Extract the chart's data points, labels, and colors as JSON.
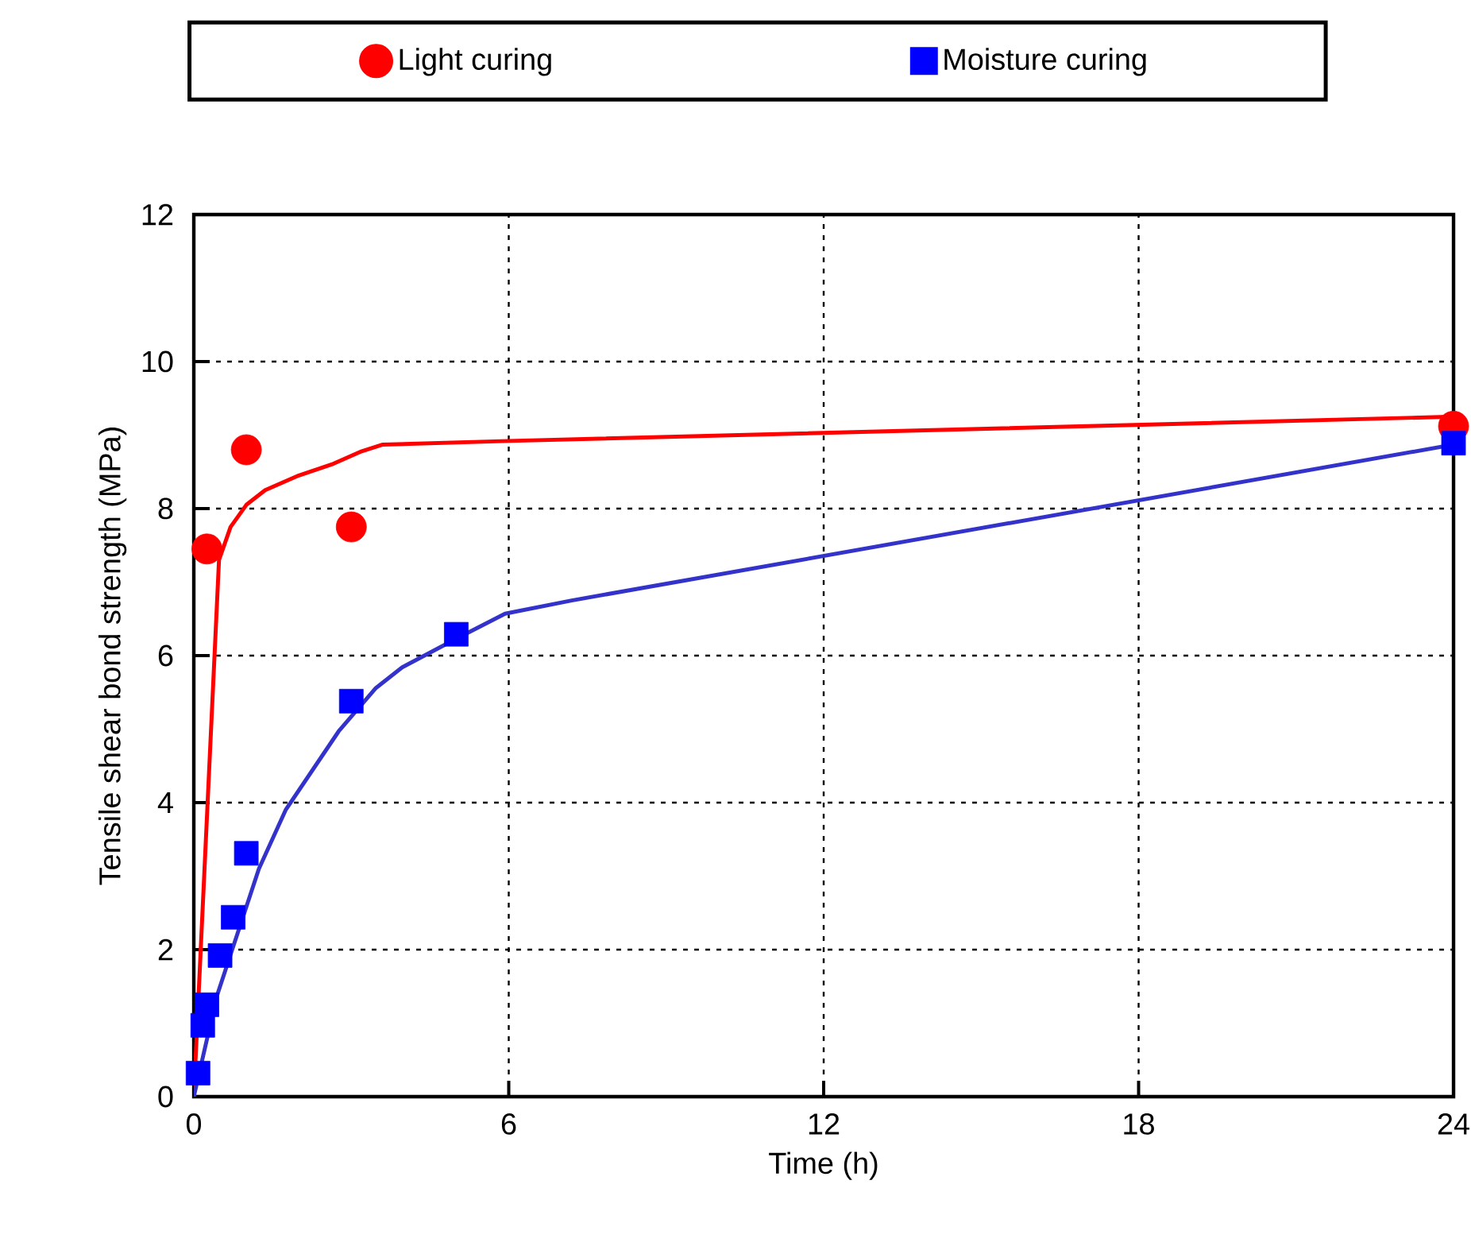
{
  "chart_data": {
    "type": "scatter",
    "xlabel": "Time (h)",
    "ylabel": "Tensile shear bond strength (MPa)",
    "xlim": [
      0,
      24
    ],
    "ylim": [
      0,
      12
    ],
    "xticks": [
      0,
      6,
      12,
      18,
      24
    ],
    "yticks": [
      0,
      2,
      4,
      6,
      8,
      10,
      12
    ],
    "grid": true,
    "legend": "top",
    "series": [
      {
        "name": "Light curing",
        "marker": "circle",
        "color": "#ff0000",
        "x": [
          0.25,
          1,
          3,
          24
        ],
        "values": [
          7.45,
          8.8,
          7.75,
          9.12
        ]
      },
      {
        "name": "Moisture curing",
        "marker": "square",
        "color": "#0000ff",
        "x": [
          0.08,
          0.17,
          0.25,
          0.5,
          0.75,
          1,
          3,
          5,
          24
        ],
        "values": [
          0.32,
          0.97,
          1.25,
          1.92,
          2.44,
          3.31,
          5.38,
          6.29,
          8.89
        ]
      },
      {
        "type": "line",
        "marker": "none",
        "color": "#ff0000",
        "x": [
          0,
          0.48,
          0.7,
          1.0,
          1.36,
          2.0,
          2.66,
          3.2,
          3.6,
          6,
          24
        ],
        "values": [
          0,
          7.3,
          7.75,
          8.05,
          8.25,
          8.45,
          8.61,
          8.78,
          8.87,
          8.92,
          9.25
        ]
      },
      {
        "type": "line",
        "marker": "none",
        "color": "#3333cc",
        "x": [
          0,
          0.44,
          1.24,
          1.75,
          2.76,
          3.47,
          3.97,
          5.0,
          5.93,
          7.2,
          24
        ],
        "values": [
          0,
          1.37,
          3.1,
          3.9,
          4.97,
          5.56,
          5.84,
          6.23,
          6.57,
          6.75,
          8.87
        ]
      }
    ]
  }
}
